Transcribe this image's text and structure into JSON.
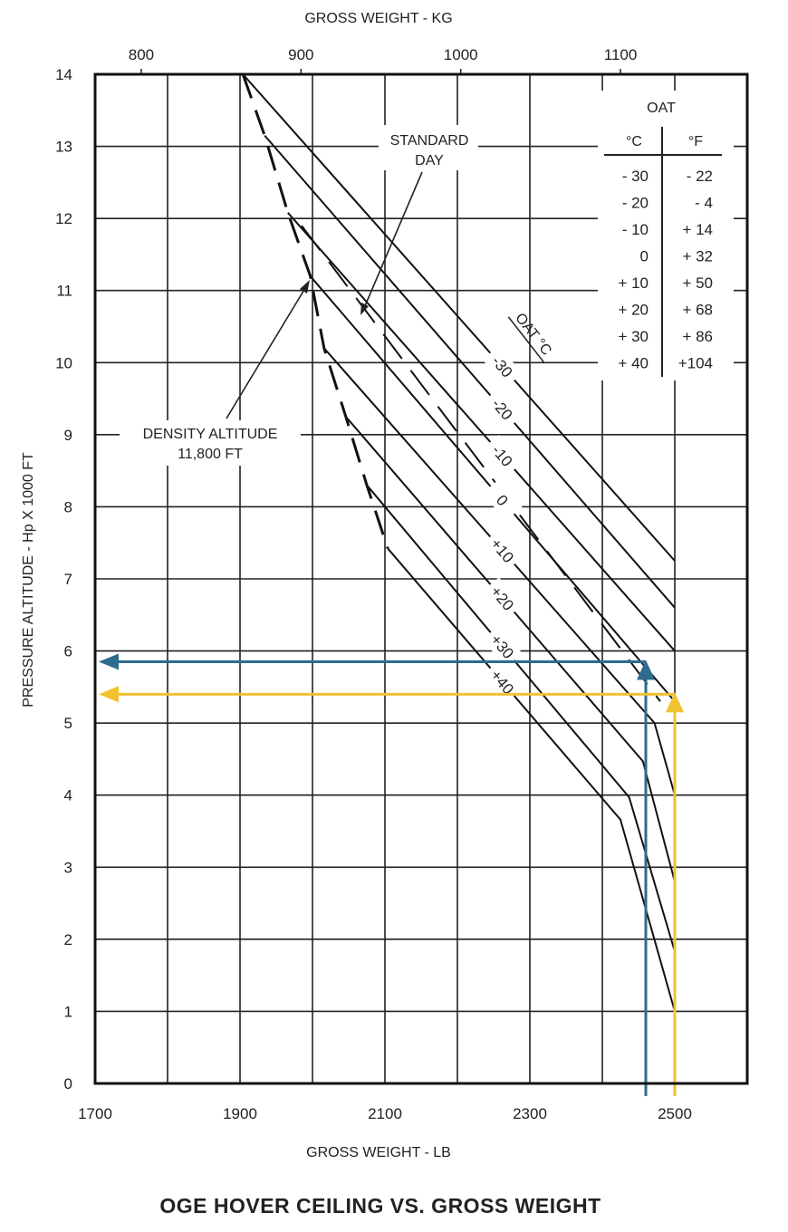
{
  "chart_data": {
    "type": "line",
    "title": "OGE HOVER CEILING VS. GROSS WEIGHT",
    "xlabel": "GROSS WEIGHT - LB",
    "x2label": "GROSS WEIGHT - KG",
    "ylabel": "PRESSURE ALTITUDE - Hp X 1000 FT",
    "xlim": [
      1700,
      2600
    ],
    "ylim": [
      0,
      14
    ],
    "grid": true,
    "x_ticks": [
      1700,
      1900,
      2100,
      2300,
      2500
    ],
    "x2_ticks": [
      800,
      900,
      1000,
      1100
    ],
    "y_ticks": [
      0,
      1,
      2,
      3,
      4,
      5,
      6,
      7,
      8,
      9,
      10,
      11,
      12,
      13,
      14
    ],
    "series_label": "OAT °C",
    "series": [
      {
        "name": "-30",
        "points": [
          [
            1904,
            14
          ],
          [
            2500,
            7.25
          ]
        ]
      },
      {
        "name": "-20",
        "points": [
          [
            1934,
            13.15
          ],
          [
            2500,
            6.6
          ]
        ]
      },
      {
        "name": "-10",
        "points": [
          [
            1966,
            12.08
          ],
          [
            2500,
            6.0
          ]
        ]
      },
      {
        "name": "0",
        "points": [
          [
            1997,
            11.2
          ],
          [
            2500,
            5.3
          ]
        ]
      },
      {
        "name": "+10",
        "points": [
          [
            2016,
            10.2
          ],
          [
            2472,
            5.0
          ],
          [
            2500,
            4.0
          ]
        ]
      },
      {
        "name": "+20",
        "points": [
          [
            2046,
            9.25
          ],
          [
            2456,
            4.47
          ],
          [
            2500,
            2.8
          ]
        ]
      },
      {
        "name": "+30",
        "points": [
          [
            2075,
            8.3
          ],
          [
            2437,
            3.97
          ],
          [
            2500,
            1.83
          ]
        ]
      },
      {
        "name": "+40",
        "points": [
          [
            2104,
            7.42
          ],
          [
            2425,
            3.66
          ],
          [
            2500,
            1.0
          ]
        ]
      }
    ],
    "density_altitude_line": {
      "points": [
        [
          1904,
          14
        ],
        [
          1934,
          13.15
        ],
        [
          1966,
          12.08
        ],
        [
          1997,
          11.2
        ],
        [
          2016,
          10.2
        ],
        [
          2046,
          9.25
        ],
        [
          2075,
          8.3
        ],
        [
          2104,
          7.42
        ]
      ]
    },
    "standard_day_line": {
      "points": [
        [
          1985,
          11.9
        ],
        [
          2480,
          5.3
        ]
      ]
    },
    "annotations": {
      "standard_day": [
        "STANDARD",
        "DAY"
      ],
      "density_altitude": [
        "DENSITY ALTITUDE",
        "11,800 FT"
      ]
    },
    "oat_table": {
      "header": "OAT",
      "col_c": "°C",
      "col_f": "°F",
      "rows": [
        [
          "- 30",
          "- 22"
        ],
        [
          "- 20",
          "-   4"
        ],
        [
          "- 10",
          "+ 14"
        ],
        [
          "0",
          "+ 32"
        ],
        [
          "+ 10",
          "+ 50"
        ],
        [
          "+ 20",
          "+ 68"
        ],
        [
          "+ 30",
          "+ 86"
        ],
        [
          "+ 40",
          "+104"
        ]
      ]
    },
    "readouts": [
      {
        "color": "#2e6b8f",
        "weight_lb": 2460,
        "altitude": 5.85
      },
      {
        "color": "#f2c12e",
        "weight_lb": 2500,
        "altitude": 5.4
      }
    ]
  }
}
